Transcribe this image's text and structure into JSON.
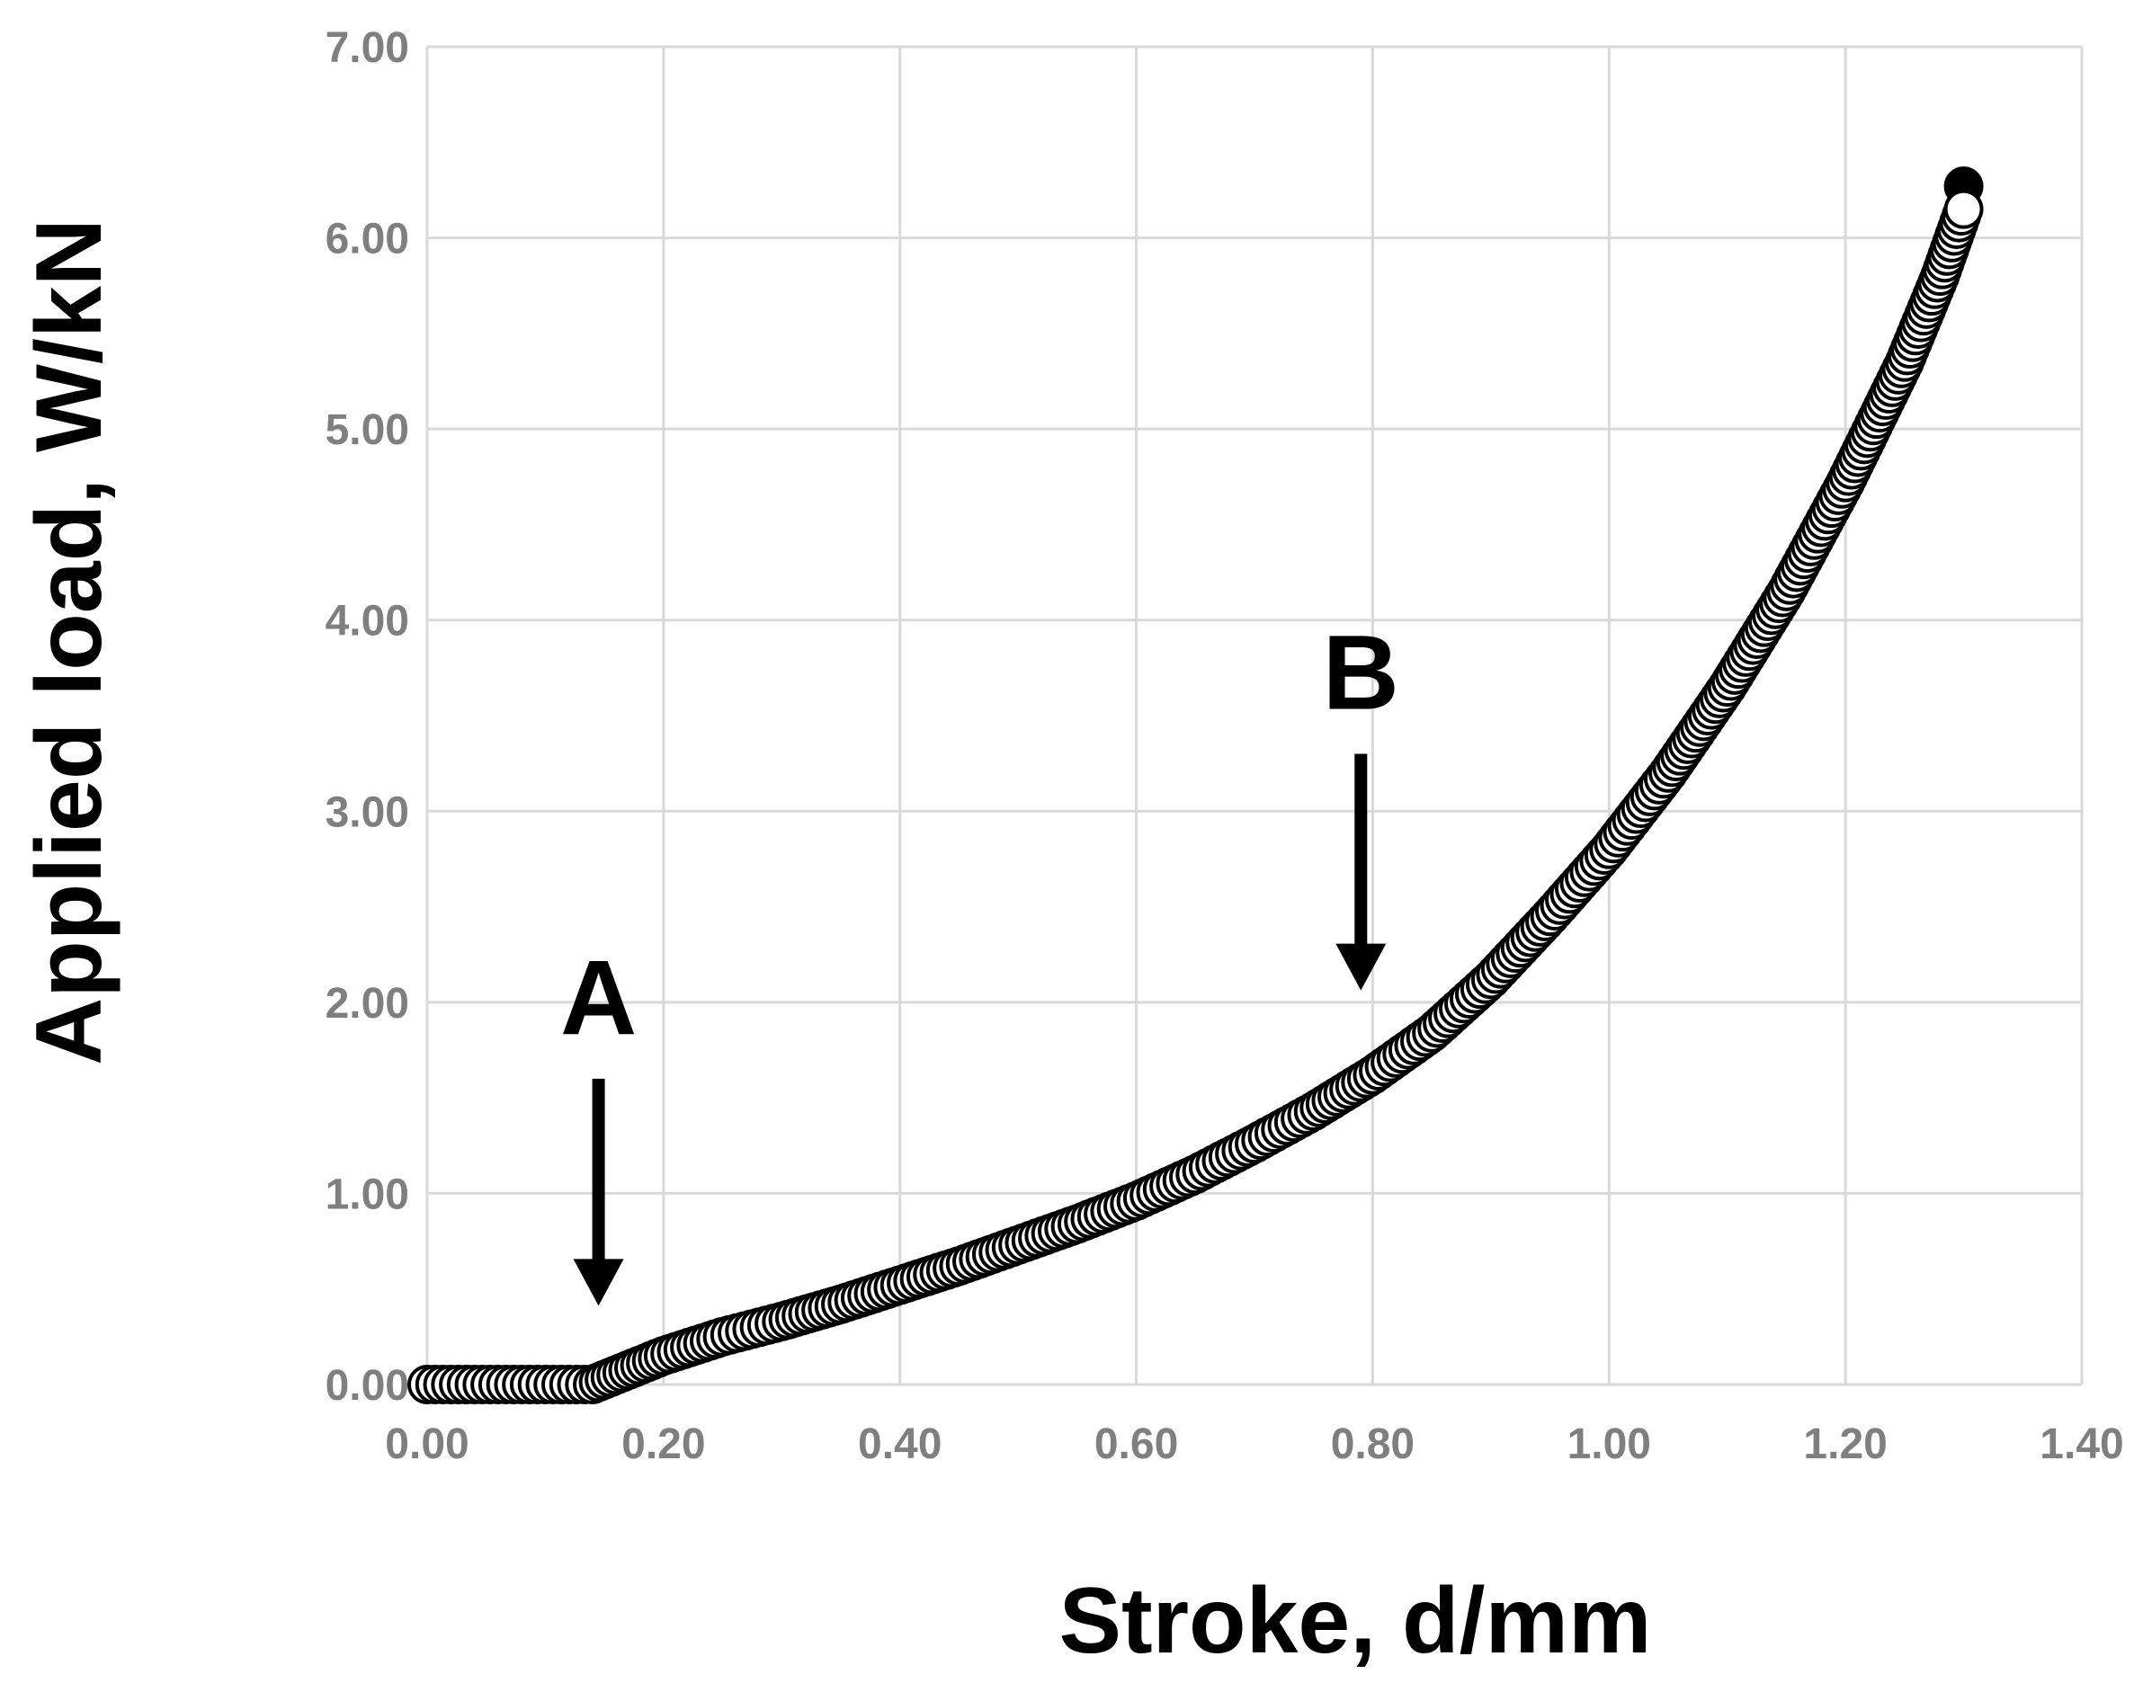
{
  "chart_data": {
    "type": "scatter",
    "xlabel": "Stroke, d/mm",
    "ylabel": "Applied load, W/kN",
    "xlim": [
      0,
      1.4
    ],
    "ylim": [
      0,
      7
    ],
    "xticks": [
      "0.00",
      "0.20",
      "0.40",
      "0.60",
      "0.80",
      "1.00",
      "1.20",
      "1.40"
    ],
    "yticks": [
      "0.00",
      "1.00",
      "2.00",
      "3.00",
      "4.00",
      "5.00",
      "6.00",
      "7.00"
    ],
    "grid": true,
    "marker": "open-circle",
    "colors": {
      "grid": "#d9d9d9",
      "tick_text": "#7f7f7f",
      "marker_edge": "#000000",
      "marker_fill": "#ffffff"
    },
    "series": [
      {
        "x": [
          0.0,
          0.02,
          0.04,
          0.06,
          0.08,
          0.1,
          0.12,
          0.14,
          0.16,
          0.18,
          0.2,
          0.25,
          0.3,
          0.35,
          0.4,
          0.45,
          0.5,
          0.55,
          0.6,
          0.65,
          0.7,
          0.75,
          0.8,
          0.85,
          0.9,
          0.95,
          1.0,
          1.05,
          1.1,
          1.15,
          1.2,
          1.25,
          1.28,
          1.3
        ],
        "y": [
          0.0,
          0.0,
          0.0,
          0.0,
          0.0,
          0.0,
          0.0,
          0.0,
          0.05,
          0.1,
          0.15,
          0.25,
          0.33,
          0.42,
          0.52,
          0.62,
          0.73,
          0.84,
          0.96,
          1.1,
          1.26,
          1.43,
          1.62,
          1.84,
          2.12,
          2.45,
          2.8,
          3.2,
          3.65,
          4.15,
          4.72,
          5.35,
          5.8,
          6.15
        ]
      }
    ],
    "annotations": [
      {
        "label": "A",
        "x": 0.145,
        "arrow_from_y": 1.6,
        "arrow_to_y": 0.45
      },
      {
        "label": "B",
        "x": 0.79,
        "arrow_from_y": 3.3,
        "arrow_to_y": 2.1
      }
    ]
  }
}
